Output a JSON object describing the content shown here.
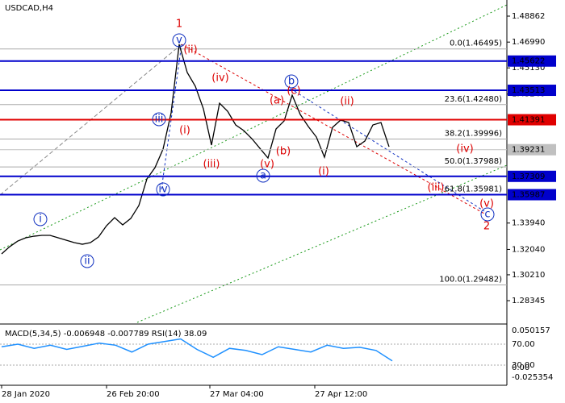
{
  "chart_data": {
    "type": "line",
    "symbol": "USDCAD,H4",
    "ylim": [
      1.26777,
      1.50024
    ],
    "yticks": [
      1.48862,
      {
        "value": 1.4699,
        "label": "1.46990"
      },
      {
        "value": 1.4513,
        "label": "1.45130"
      },
      {
        "value": 1.4324,
        "label": "1.43240"
      },
      {
        "value": 1.3394,
        "label": "1.33940"
      },
      {
        "value": 1.3204,
        "label": "1.32040"
      },
      {
        "value": 1.3021,
        "label": "1.30210"
      },
      1.28345
    ],
    "x_labels": [
      "28 Jan 2020",
      "26 Feb 20:00",
      "27 Mar 04:00",
      "27 Apr 12:00"
    ],
    "series": [
      {
        "name": "USDCAD",
        "color": "#000000",
        "values": [
          1.31715,
          1.32238,
          1.32645,
          1.32877,
          1.32993,
          1.33052,
          1.33052,
          1.32877,
          1.32703,
          1.32528,
          1.32412,
          1.32528,
          1.32935,
          1.33749,
          1.3433,
          1.33807,
          1.34272,
          1.35202,
          1.3712,
          1.37934,
          1.39271,
          1.41887,
          1.46827,
          1.44793,
          1.43805,
          1.42177,
          1.39562,
          1.42584,
          1.42003,
          1.41015,
          1.40608,
          1.40027,
          1.39329,
          1.38632,
          1.40724,
          1.41305,
          1.43165,
          1.4177,
          1.40898,
          1.40143,
          1.3869,
          1.4084,
          1.41363,
          1.41189,
          1.39445,
          1.39852,
          1.41015,
          1.41189,
          1.39445
        ]
      }
    ],
    "levels": [
      {
        "value": 1.45622,
        "color": "#0000cc"
      },
      {
        "value": 1.43513,
        "color": "#0000cc"
      },
      {
        "value": 1.41391,
        "color": "#e00000"
      },
      {
        "value": 1.39231,
        "color": "#c0c0c0"
      },
      {
        "value": 1.37309,
        "color": "#0000cc"
      },
      {
        "value": 1.35987,
        "color": "#0000cc"
      }
    ],
    "fib_levels": [
      {
        "value": 1.46495,
        "label": "0.0(1.46495)"
      },
      {
        "value": 1.4248,
        "label": "23.6(1.42480)"
      },
      {
        "value": 1.39996,
        "label": "38.2(1.39996)"
      },
      {
        "value": 1.37988,
        "label": "50.0(1.37988)"
      },
      {
        "value": 1.35981,
        "label": "61.8(1.35981)"
      },
      {
        "value": 1.29482,
        "label": "100.0(1.29482)"
      }
    ],
    "waves_blue": [
      "i",
      "ii",
      "iii",
      "iv",
      "v",
      "a",
      "b",
      "c"
    ],
    "waves_red": [
      "1",
      "2",
      "(i)",
      "(ii)",
      "(iii)",
      "(iv)",
      "(v)",
      "(i)",
      "(ii)",
      "(iii)",
      "(iv)",
      "(v)",
      "(a)",
      "(b)",
      "(c)"
    ],
    "indicator": {
      "title": "MACD(5,34,5) -0.006948 -0.007789 RSI(14) 38.09",
      "ylim": [
        0,
        100
      ],
      "yticks": [
        70,
        30
      ],
      "ytick_labels": [
        "70.00",
        "30.00"
      ],
      "macd_labels": [
        "0.050157",
        "0.00",
        "-0.025354"
      ],
      "rsi": [
        65,
        70,
        62,
        68,
        60,
        66,
        72,
        68,
        55,
        70,
        75,
        80,
        60,
        45,
        62,
        58,
        50,
        65,
        60,
        55,
        68,
        62,
        64,
        58,
        38.09
      ]
    }
  }
}
